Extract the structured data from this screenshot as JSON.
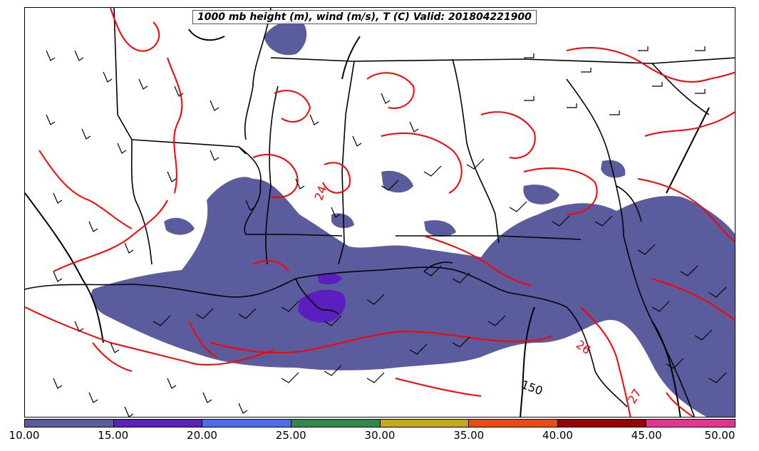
{
  "title": "1000 mb height (m), wind (m/s), T (C) Valid: 201804221900",
  "contour_labels": {
    "height_150": "150",
    "temp_26": "26",
    "temp_24": "24",
    "temp_27": "27"
  },
  "colorbar": {
    "ticks": [
      "10.00",
      "15.00",
      "20.00",
      "25.00",
      "30.00",
      "35.00",
      "40.00",
      "45.00",
      "50.00"
    ],
    "colors": [
      "#5a5c9e",
      "#5b1fc0",
      "#4a6cf2",
      "#2e8a4c",
      "#c8a818",
      "#ee4a10",
      "#9a0000",
      "#e83290"
    ]
  },
  "colors": {
    "temperature_contour": "#ff0000",
    "height_contour": "#000000",
    "state_borders": "#000000",
    "wind_fill_10_15": "#5a5c9e",
    "wind_fill_15_20": "#5b1fc0"
  }
}
